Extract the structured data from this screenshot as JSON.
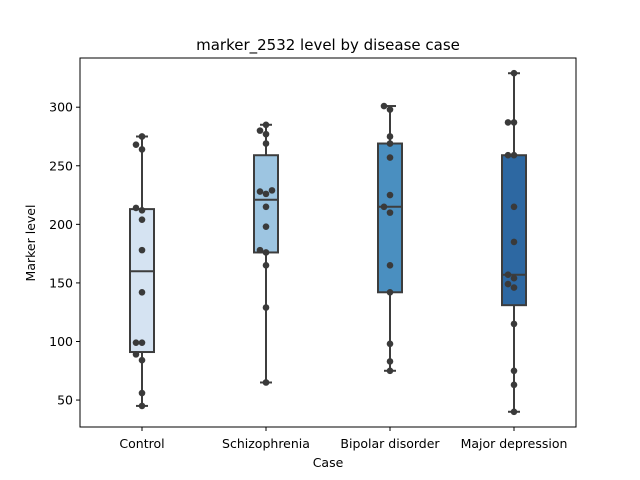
{
  "chart_data": {
    "type": "box",
    "title": "marker_2532 level by disease case",
    "xlabel": "Case",
    "ylabel": "Marker level",
    "ylim": [
      27,
      342
    ],
    "yticks": [
      50,
      100,
      150,
      200,
      250,
      300
    ],
    "grid": false,
    "categories": [
      "Control",
      "Schizophrenia",
      "Bipolar disorder",
      "Major depression"
    ],
    "colors": [
      "#d5e3f2",
      "#9dc5e1",
      "#4a8fc0",
      "#2d68a2"
    ],
    "boxes": [
      {
        "category": "Control",
        "whisker_low": 45,
        "q1": 91,
        "median": 160,
        "q3": 213,
        "whisker_high": 275,
        "points": [
          275,
          268,
          264,
          214,
          212,
          204,
          178,
          142,
          99,
          99,
          89,
          84,
          56,
          45
        ]
      },
      {
        "category": "Schizophrenia",
        "whisker_low": 65,
        "q1": 176,
        "median": 221,
        "q3": 259,
        "whisker_high": 285,
        "points": [
          285,
          280,
          277,
          269,
          229,
          228,
          226,
          215,
          198,
          178,
          176,
          165,
          129,
          65
        ]
      },
      {
        "category": "Bipolar disorder",
        "whisker_low": 75,
        "q1": 142,
        "median": 215,
        "q3": 269,
        "whisker_high": 301,
        "points": [
          301,
          298,
          275,
          269,
          257,
          225,
          215,
          210,
          165,
          142,
          98,
          83,
          75
        ]
      },
      {
        "category": "Major depression",
        "whisker_low": 40,
        "q1": 131,
        "median": 157,
        "q3": 259,
        "whisker_high": 329,
        "points": [
          329,
          287,
          287,
          259,
          259,
          215,
          185,
          157,
          154,
          149,
          146,
          115,
          75,
          63,
          40
        ]
      }
    ]
  }
}
